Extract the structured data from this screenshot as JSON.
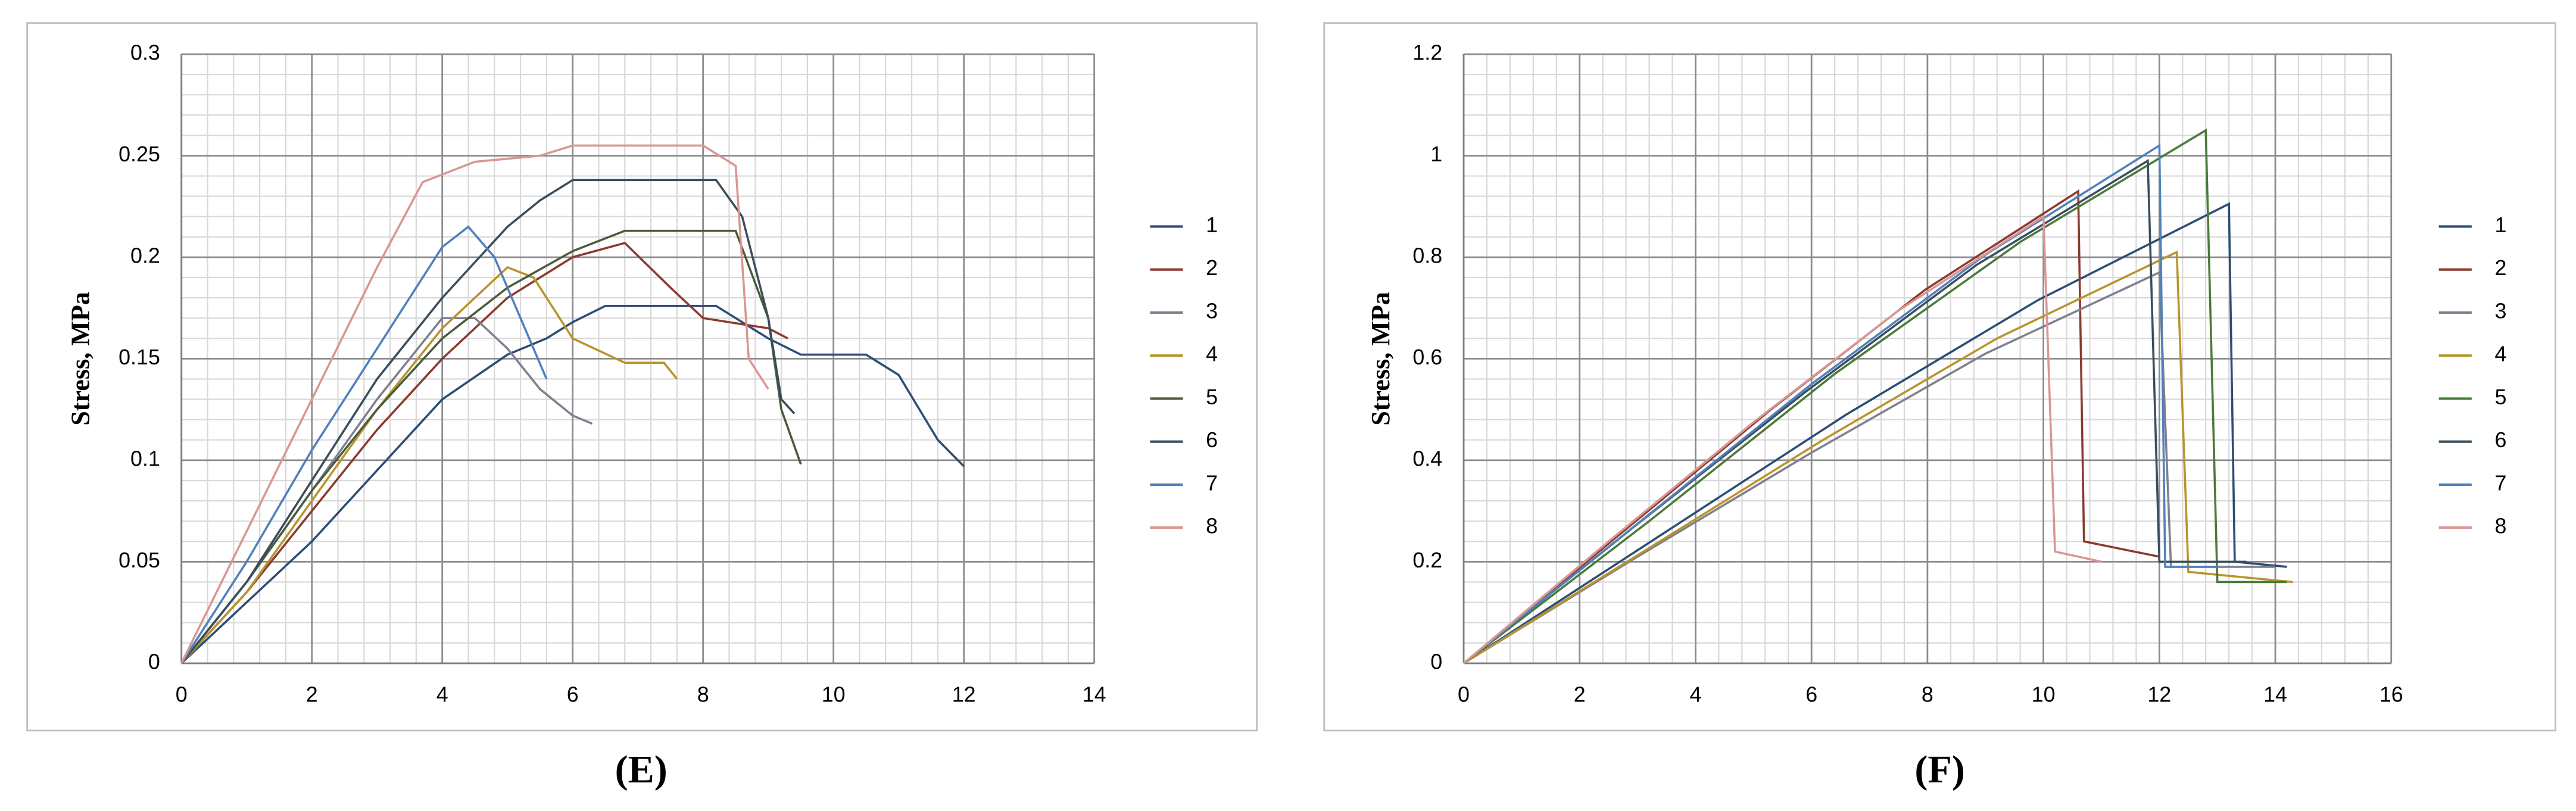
{
  "chart_data": [
    {
      "type": "line",
      "label": "(E)",
      "ylabel": "Stress, MPa",
      "xlim": [
        0,
        14
      ],
      "xticks": [
        0,
        2,
        4,
        6,
        8,
        10,
        12,
        14
      ],
      "ylim": [
        0,
        0.3
      ],
      "yticks": [
        0,
        0.05,
        0.1,
        0.15,
        0.2,
        0.25,
        0.3
      ],
      "grid": true,
      "legend": "right",
      "series": [
        {
          "name": "1",
          "color": "#2c4d75",
          "x": [
            0,
            1,
            2,
            3,
            4,
            5,
            5.6,
            6,
            6.5,
            8.2,
            9,
            9.5,
            10.5,
            11,
            11.6,
            12
          ],
          "values": [
            0,
            0.03,
            0.06,
            0.095,
            0.13,
            0.152,
            0.16,
            0.168,
            0.176,
            0.176,
            0.16,
            0.152,
            0.152,
            0.142,
            0.11,
            0.097
          ]
        },
        {
          "name": "2",
          "color": "#8b3a2f",
          "x": [
            0,
            1,
            2,
            3,
            4,
            5,
            6,
            6.8,
            7.5,
            8,
            9,
            9.3
          ],
          "values": [
            0,
            0.035,
            0.075,
            0.115,
            0.15,
            0.18,
            0.2,
            0.207,
            0.185,
            0.17,
            0.165,
            0.16
          ]
        },
        {
          "name": "3",
          "color": "#7f7f8f",
          "x": [
            0,
            1,
            2,
            3,
            4,
            4.5,
            5,
            5.5,
            6,
            6.3
          ],
          "values": [
            0,
            0.04,
            0.085,
            0.13,
            0.17,
            0.17,
            0.155,
            0.135,
            0.122,
            0.118
          ]
        },
        {
          "name": "4",
          "color": "#b8942c",
          "x": [
            0,
            1,
            2,
            3,
            4,
            5,
            5.4,
            6,
            6.8,
            7.4,
            7.6
          ],
          "values": [
            0,
            0.035,
            0.08,
            0.125,
            0.165,
            0.195,
            0.19,
            0.16,
            0.148,
            0.148,
            0.14
          ]
        },
        {
          "name": "5",
          "color": "#4a5b3a",
          "x": [
            0,
            1,
            2,
            3,
            4,
            5,
            6,
            6.8,
            8.5,
            9,
            9.2,
            9.5
          ],
          "values": [
            0,
            0.04,
            0.085,
            0.125,
            0.16,
            0.185,
            0.203,
            0.213,
            0.213,
            0.17,
            0.125,
            0.098
          ]
        },
        {
          "name": "6",
          "color": "#3a4d5c",
          "x": [
            0,
            1,
            2,
            3,
            4,
            5,
            5.5,
            6,
            8.2,
            8.6,
            9,
            9.2,
            9.4
          ],
          "values": [
            0,
            0.04,
            0.09,
            0.14,
            0.18,
            0.215,
            0.228,
            0.238,
            0.238,
            0.22,
            0.17,
            0.13,
            0.123
          ]
        },
        {
          "name": "7",
          "color": "#4f81bd",
          "x": [
            0,
            1,
            2,
            3,
            4,
            4.4,
            4.8,
            5.2,
            5.6
          ],
          "values": [
            0,
            0.05,
            0.105,
            0.155,
            0.205,
            0.215,
            0.2,
            0.17,
            0.14
          ]
        },
        {
          "name": "8",
          "color": "#d99694",
          "x": [
            0,
            1,
            2,
            3,
            3.7,
            4.5,
            5.5,
            6,
            8,
            8.5,
            8.7,
            9
          ],
          "values": [
            0,
            0.065,
            0.13,
            0.195,
            0.237,
            0.247,
            0.25,
            0.255,
            0.255,
            0.245,
            0.15,
            0.135
          ]
        }
      ]
    },
    {
      "type": "line",
      "label": "(F)",
      "ylabel": "Stress, MPa",
      "xlim": [
        0,
        16
      ],
      "xticks": [
        0,
        2,
        4,
        6,
        8,
        10,
        12,
        14,
        16
      ],
      "ylim": [
        0,
        1.2
      ],
      "yticks": [
        0,
        0.2,
        0.4,
        0.6,
        0.8,
        1,
        1.2
      ],
      "grid": true,
      "legend": "right",
      "series": [
        {
          "name": "1",
          "color": "#2c4d75",
          "x": [
            0,
            3.3,
            6.6,
            9.9,
            13.2,
            13.3,
            14.2
          ],
          "values": [
            0,
            0.245,
            0.49,
            0.715,
            0.905,
            0.2,
            0.19
          ]
        },
        {
          "name": "2",
          "color": "#8b3a2f",
          "x": [
            0,
            2.65,
            5.3,
            7.95,
            10.6,
            10.7,
            12
          ],
          "values": [
            0,
            0.25,
            0.5,
            0.735,
            0.93,
            0.24,
            0.21
          ]
        },
        {
          "name": "3",
          "color": "#7f7f8f",
          "x": [
            0,
            3,
            6,
            9,
            12,
            12.2,
            14
          ],
          "values": [
            0,
            0.21,
            0.415,
            0.61,
            0.77,
            0.19,
            0.19
          ]
        },
        {
          "name": "4",
          "color": "#b8942c",
          "x": [
            0,
            3.1,
            6.2,
            9.2,
            12.3,
            12.5,
            14.3
          ],
          "values": [
            0,
            0.22,
            0.44,
            0.64,
            0.81,
            0.18,
            0.16
          ]
        },
        {
          "name": "5",
          "color": "#4a7a3a",
          "x": [
            0,
            3.2,
            6.4,
            9.6,
            12.8,
            13,
            14.2
          ],
          "values": [
            0,
            0.28,
            0.57,
            0.83,
            1.05,
            0.16,
            0.16
          ]
        },
        {
          "name": "6",
          "color": "#3a4d5c",
          "x": [
            0,
            2.95,
            5.9,
            8.85,
            11.8,
            12,
            13.5
          ],
          "values": [
            0,
            0.27,
            0.535,
            0.785,
            0.99,
            0.2,
            0.2
          ]
        },
        {
          "name": "7",
          "color": "#4f81bd",
          "x": [
            0,
            3,
            6,
            9,
            12,
            12.1,
            13
          ],
          "values": [
            0,
            0.275,
            0.55,
            0.805,
            1.02,
            0.19,
            0.19
          ]
        },
        {
          "name": "8",
          "color": "#d99694",
          "x": [
            0,
            2.5,
            5,
            7.5,
            10,
            10.2,
            11
          ],
          "values": [
            0,
            0.24,
            0.475,
            0.695,
            0.88,
            0.22,
            0.2
          ]
        }
      ]
    }
  ]
}
